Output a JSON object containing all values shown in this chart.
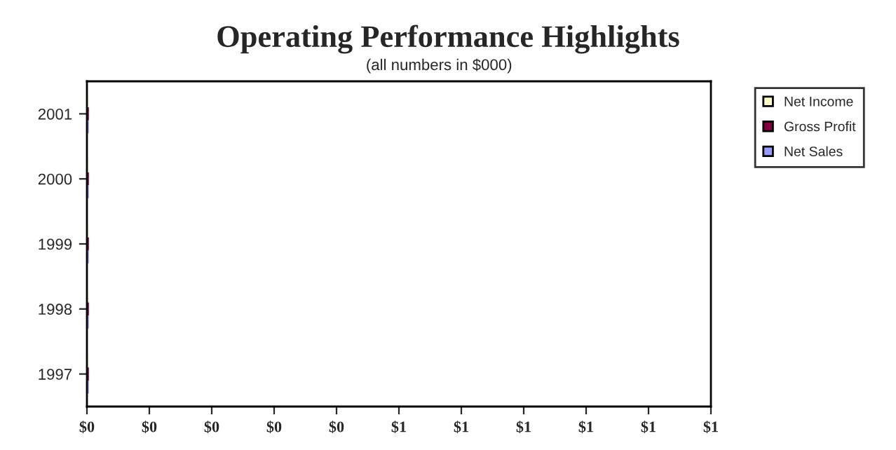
{
  "chart_data": {
    "type": "bar",
    "orientation": "horizontal",
    "title": "Operating Performance Highlights",
    "subtitle": "(all numbers in $000)",
    "categories": [
      "2001",
      "2000",
      "1999",
      "1998",
      "1997"
    ],
    "series": [
      {
        "name": "Net Income",
        "color": "#ffffcc",
        "values": [
          0,
          0,
          0,
          0,
          0
        ]
      },
      {
        "name": "Gross Profit",
        "color": "#800040",
        "values": [
          0,
          0,
          0,
          0,
          0
        ]
      },
      {
        "name": "Net Sales",
        "color": "#9999ff",
        "values": [
          0,
          0,
          0,
          0,
          0
        ]
      }
    ],
    "xlim": [
      0,
      1
    ],
    "xticks": [
      {
        "value": 0,
        "label": "$0"
      },
      {
        "value": 0.1,
        "label": "$0"
      },
      {
        "value": 0.2,
        "label": "$0"
      },
      {
        "value": 0.3,
        "label": "$0"
      },
      {
        "value": 0.4,
        "label": "$0"
      },
      {
        "value": 0.5,
        "label": "$1"
      },
      {
        "value": 0.6,
        "label": "$1"
      },
      {
        "value": 0.7,
        "label": "$1"
      },
      {
        "value": 0.8,
        "label": "$1"
      },
      {
        "value": 0.9,
        "label": "$1"
      },
      {
        "value": 1,
        "label": "$1"
      }
    ],
    "grid": false,
    "legend": "top right"
  }
}
